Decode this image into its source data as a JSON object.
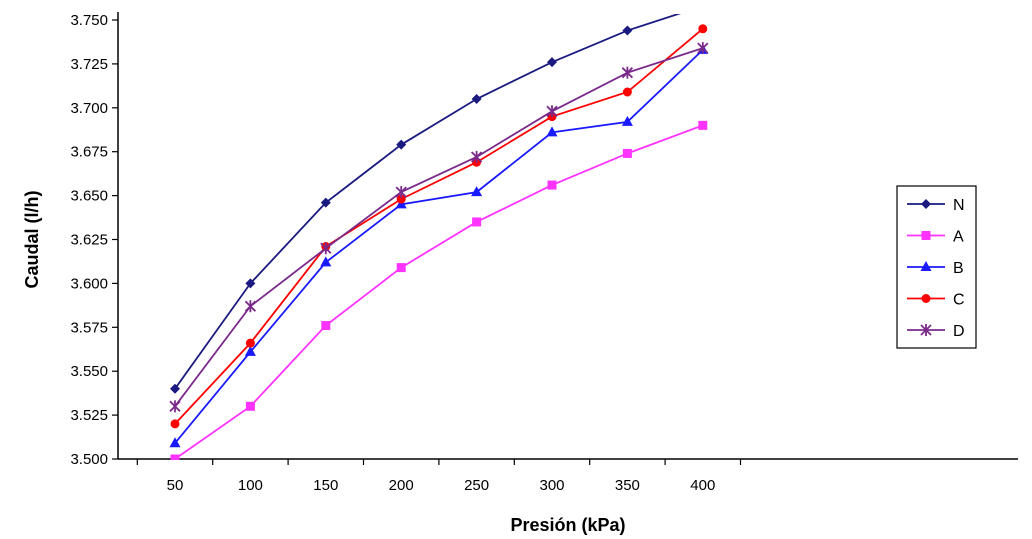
{
  "chart_data": {
    "type": "line",
    "xlabel": "Presión (kPa)",
    "ylabel": "Caudal (l/h)",
    "x": [
      50,
      100,
      150,
      200,
      250,
      300,
      350,
      400
    ],
    "x_tick_labels": [
      "50",
      "100",
      "150",
      "200",
      "250",
      "300",
      "350",
      "400"
    ],
    "ylim": [
      3.5,
      3.75
    ],
    "y_ticks": [
      3.5,
      3.525,
      3.55,
      3.575,
      3.6,
      3.625,
      3.65,
      3.675,
      3.7,
      3.725,
      3.75
    ],
    "y_tick_labels": [
      "3.500",
      "3.525",
      "3.550",
      "3.575",
      "3.600",
      "3.625",
      "3.650",
      "3.675",
      "3.700",
      "3.725",
      "3.750"
    ],
    "grid": false,
    "legend_position": "right",
    "series": [
      {
        "name": "N",
        "color": "#1a1a80",
        "marker": "diamond",
        "values": [
          3.54,
          3.6,
          3.646,
          3.679,
          3.705,
          3.726,
          3.744,
          3.758
        ]
      },
      {
        "name": "A",
        "color": "#ff33ff",
        "marker": "square",
        "values": [
          3.5,
          3.53,
          3.576,
          3.609,
          3.635,
          3.656,
          3.674,
          3.69
        ]
      },
      {
        "name": "B",
        "color": "#1a1aff",
        "marker": "triangle",
        "values": [
          3.509,
          3.561,
          3.612,
          3.645,
          3.652,
          3.686,
          3.692,
          3.733
        ]
      },
      {
        "name": "C",
        "color": "#ff0000",
        "marker": "circle",
        "values": [
          3.52,
          3.566,
          3.621,
          3.648,
          3.669,
          3.695,
          3.709,
          3.745
        ]
      },
      {
        "name": "D",
        "color": "#7a2a8a",
        "marker": "star",
        "values": [
          3.53,
          3.587,
          3.62,
          3.652,
          3.672,
          3.698,
          3.72,
          3.734
        ]
      }
    ]
  }
}
